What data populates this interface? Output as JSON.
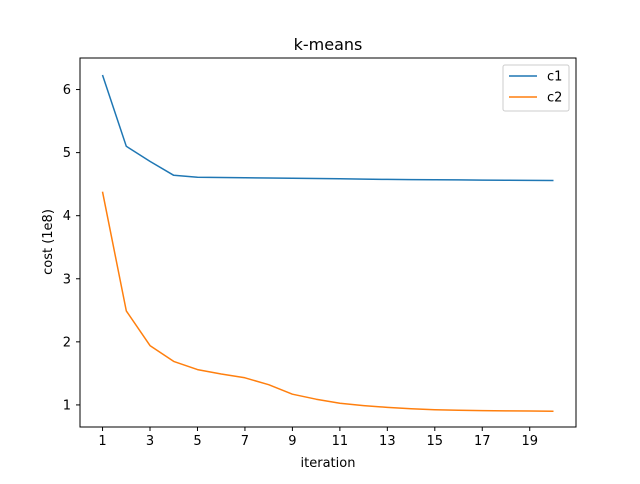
{
  "chart_data": {
    "type": "line",
    "title": "k-means",
    "xlabel": "iteration",
    "ylabel": "cost (1e8)",
    "xlim": [
      0.05,
      20.95
    ],
    "ylim": [
      0.65,
      6.5
    ],
    "x_ticks": [
      1,
      3,
      5,
      7,
      9,
      11,
      13,
      15,
      17,
      19
    ],
    "y_ticks": [
      1,
      2,
      3,
      4,
      5,
      6
    ],
    "grid": false,
    "legend_position": "upper right",
    "x": [
      1,
      2,
      3,
      4,
      5,
      6,
      7,
      8,
      9,
      10,
      11,
      12,
      13,
      14,
      15,
      16,
      17,
      18,
      19,
      20
    ],
    "series": [
      {
        "name": "c1",
        "color": "#1f77b4",
        "values": [
          6.23,
          5.1,
          4.86,
          4.64,
          4.61,
          4.605,
          4.6,
          4.598,
          4.595,
          4.59,
          4.585,
          4.58,
          4.575,
          4.572,
          4.57,
          4.568,
          4.565,
          4.562,
          4.56,
          4.558
        ]
      },
      {
        "name": "c2",
        "color": "#ff7f0e",
        "values": [
          4.38,
          2.49,
          1.94,
          1.69,
          1.56,
          1.49,
          1.43,
          1.32,
          1.17,
          1.09,
          1.025,
          0.99,
          0.96,
          0.94,
          0.925,
          0.915,
          0.91,
          0.905,
          0.903,
          0.9
        ]
      }
    ]
  }
}
